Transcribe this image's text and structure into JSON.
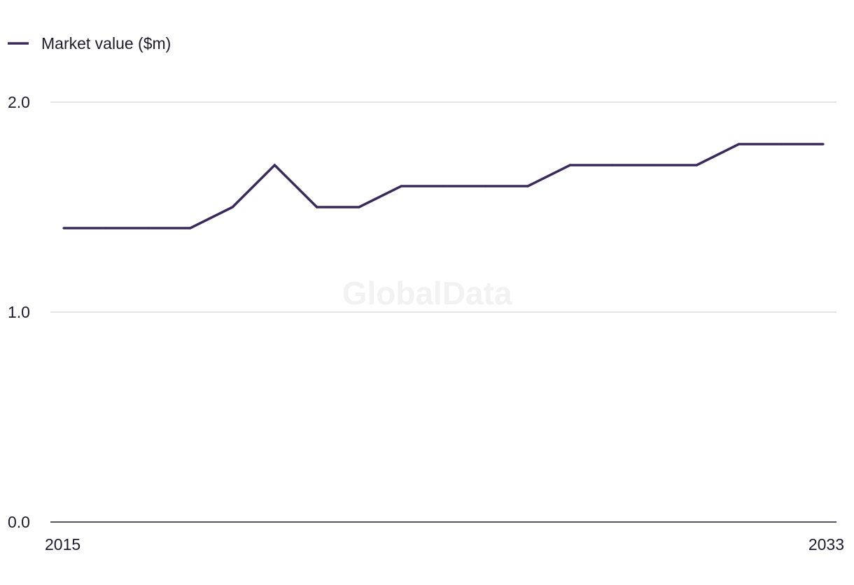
{
  "watermark": "GlobalData",
  "colors": {
    "series": "#3a2a5c",
    "grid": "#d4d4d4",
    "axis": "#1e1a2e",
    "text": "#1e1a2e",
    "watermark": "#f2f2f2"
  },
  "chart_data": {
    "type": "line",
    "x": [
      2015,
      2016,
      2017,
      2018,
      2019,
      2020,
      2021,
      2022,
      2023,
      2024,
      2025,
      2026,
      2027,
      2028,
      2029,
      2030,
      2031,
      2032,
      2033
    ],
    "series": [
      {
        "name": "Market value ($m)",
        "values": [
          1.4,
          1.4,
          1.4,
          1.4,
          1.5,
          1.7,
          1.5,
          1.5,
          1.6,
          1.6,
          1.6,
          1.6,
          1.7,
          1.7,
          1.7,
          1.7,
          1.8,
          1.8,
          1.8
        ]
      }
    ],
    "ylim": [
      0,
      2.0
    ],
    "yticks": [
      0.0,
      1.0,
      2.0
    ],
    "ytick_labels": [
      "0.0",
      "1.0",
      "2.0"
    ],
    "xtick_labels": [
      "2015",
      "2033"
    ],
    "xlabel": "",
    "ylabel": "",
    "grid": true,
    "legend_position": "top-left"
  }
}
